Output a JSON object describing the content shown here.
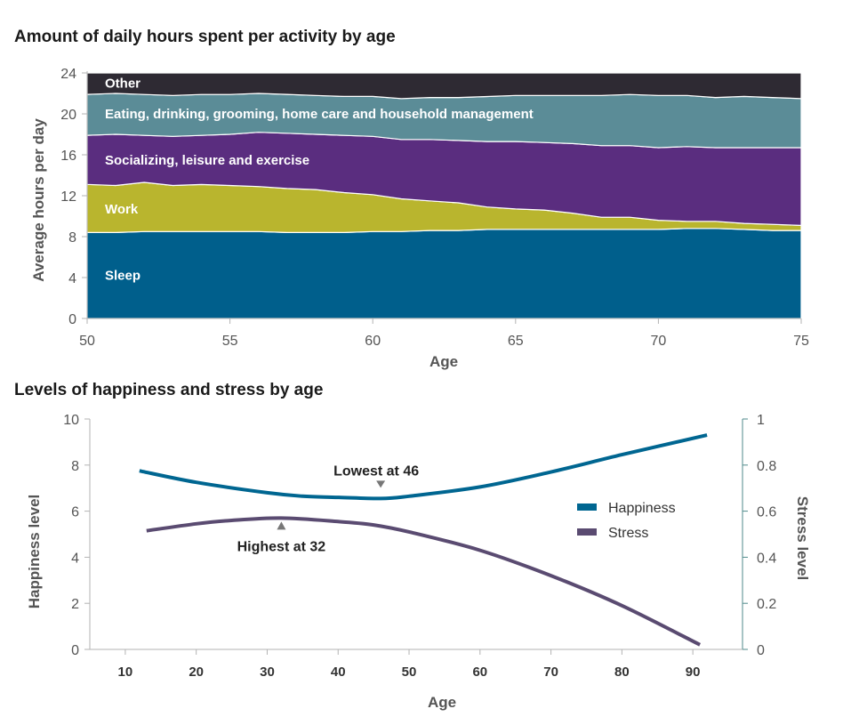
{
  "chart_data": [
    {
      "type": "area",
      "title": "Amount of daily hours spent per activity by age",
      "xlabel": "Age",
      "ylabel": "Average hours per day",
      "xlim": [
        50,
        75
      ],
      "ylim": [
        0,
        24
      ],
      "xticks": [
        50,
        55,
        60,
        65,
        70,
        75
      ],
      "yticks": [
        0,
        4,
        8,
        12,
        16,
        20,
        24
      ],
      "x": [
        50,
        51,
        52,
        53,
        54,
        55,
        56,
        57,
        58,
        59,
        60,
        61,
        62,
        63,
        64,
        65,
        66,
        67,
        68,
        69,
        70,
        71,
        72,
        73,
        74,
        75
      ],
      "series": [
        {
          "name": "Sleep",
          "color": "#005f8c",
          "values": [
            8.4,
            8.4,
            8.5,
            8.5,
            8.5,
            8.5,
            8.5,
            8.4,
            8.4,
            8.4,
            8.5,
            8.5,
            8.6,
            8.6,
            8.7,
            8.7,
            8.7,
            8.7,
            8.7,
            8.7,
            8.7,
            8.8,
            8.8,
            8.7,
            8.6,
            8.6
          ]
        },
        {
          "name": "Work",
          "color": "#b9b52e",
          "values": [
            4.7,
            4.6,
            4.8,
            4.5,
            4.6,
            4.5,
            4.4,
            4.3,
            4.2,
            3.9,
            3.6,
            3.2,
            2.9,
            2.7,
            2.2,
            2.0,
            1.9,
            1.6,
            1.2,
            1.2,
            0.9,
            0.7,
            0.7,
            0.6,
            0.6,
            0.5
          ]
        },
        {
          "name": "Socializing, leisure and exercise",
          "color": "#5a2d7f",
          "values": [
            4.8,
            5.0,
            4.6,
            4.8,
            4.8,
            5.0,
            5.3,
            5.4,
            5.4,
            5.6,
            5.7,
            5.8,
            6.0,
            6.1,
            6.4,
            6.6,
            6.6,
            6.8,
            7.0,
            7.0,
            7.1,
            7.3,
            7.2,
            7.4,
            7.5,
            7.6
          ]
        },
        {
          "name": "Eating, drinking, grooming, home care and household management",
          "color": "#5b8c97",
          "values": [
            4.0,
            4.0,
            4.0,
            4.0,
            4.0,
            3.9,
            3.8,
            3.8,
            3.8,
            3.8,
            3.9,
            4.0,
            4.1,
            4.2,
            4.4,
            4.5,
            4.6,
            4.7,
            4.9,
            5.0,
            5.1,
            5.0,
            4.9,
            5.0,
            4.9,
            4.8
          ]
        },
        {
          "name": "Other",
          "color": "#2e2a33",
          "values": [
            2.1,
            2.0,
            2.1,
            2.2,
            2.1,
            2.1,
            2.0,
            2.1,
            2.2,
            2.3,
            2.3,
            2.5,
            2.4,
            2.4,
            2.3,
            2.2,
            2.2,
            2.2,
            2.2,
            2.1,
            2.2,
            2.2,
            2.4,
            2.3,
            2.4,
            2.5
          ]
        }
      ]
    },
    {
      "type": "line",
      "title": "Levels of happiness and stress by age",
      "xlabel": "Age",
      "ylabel": "Happiness level",
      "y2label": "Stress level",
      "xlim": [
        5,
        97
      ],
      "ylim": [
        0,
        10
      ],
      "y2lim": [
        0,
        1
      ],
      "xticks": [
        10,
        20,
        30,
        40,
        50,
        60,
        70,
        80,
        90
      ],
      "yticks": [
        0,
        2,
        4,
        6,
        8,
        10
      ],
      "y2ticks": [
        "0",
        "0.2",
        "0.4",
        "0.6",
        "0.8",
        "1"
      ],
      "legend_position": "right",
      "series": [
        {
          "name": "Happiness",
          "axis": "left",
          "color": "#006691",
          "x": [
            12,
            20,
            30,
            35,
            40,
            46,
            50,
            60,
            70,
            80,
            92
          ],
          "y": [
            7.75,
            7.25,
            6.8,
            6.65,
            6.6,
            6.55,
            6.65,
            7.05,
            7.7,
            8.45,
            9.3
          ]
        },
        {
          "name": "Stress",
          "axis": "right",
          "color": "#5a4b71",
          "x": [
            13,
            20,
            25,
            32,
            40,
            45,
            50,
            60,
            70,
            80,
            91
          ],
          "y": [
            0.515,
            0.545,
            0.56,
            0.57,
            0.555,
            0.54,
            0.51,
            0.43,
            0.32,
            0.19,
            0.02
          ]
        }
      ],
      "annotations": [
        {
          "text": "Lowest at 46",
          "series": "Happiness",
          "x": 46,
          "y": 6.55,
          "marker": "down-triangle"
        },
        {
          "text": "Highest at 32",
          "series": "Stress",
          "x": 32,
          "y": 0.57,
          "marker": "up-triangle"
        }
      ]
    }
  ],
  "colors": {
    "axis": "#b3b3b3",
    "marker": "#777777",
    "axis_right": "#4f8a8b"
  }
}
